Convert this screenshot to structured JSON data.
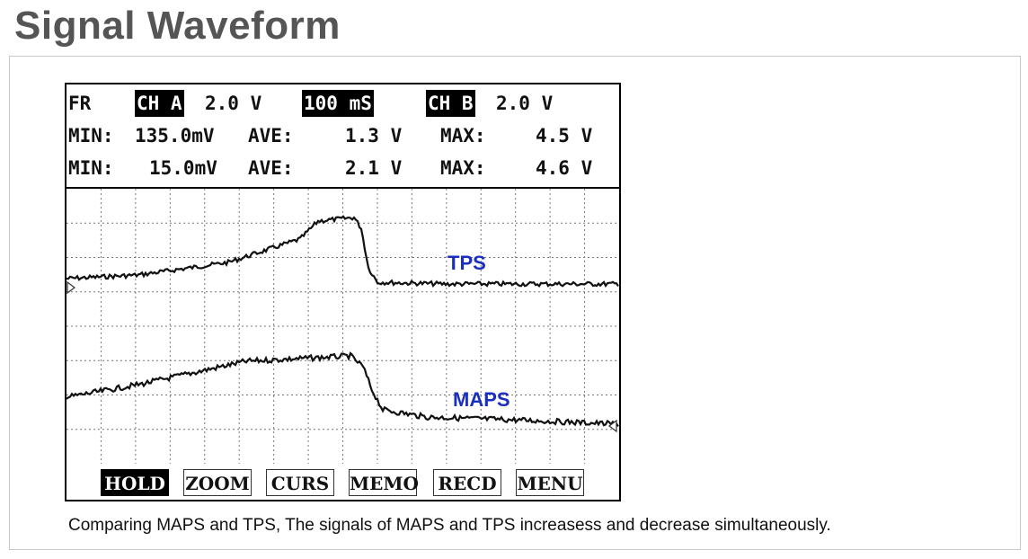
{
  "title": "Signal Waveform",
  "scope": {
    "header": {
      "mode": "FR",
      "ch_a_label": "CH A",
      "ch_a_scale": "2.0 V",
      "timebase": "100 mS",
      "ch_b_label": "CH B",
      "ch_b_scale": "2.0 V",
      "row_a": {
        "min_label": "MIN:",
        "min_value": "135.0mV",
        "ave_label": "AVE:",
        "ave_value": "1.3 V",
        "max_label": "MAX:",
        "max_value": "4.5 V"
      },
      "row_b": {
        "min_label": "MIN:",
        "min_value": "15.0mV",
        "ave_label": "AVE:",
        "ave_value": "2.1 V",
        "max_label": "MAX:",
        "max_value": "4.6 V"
      }
    },
    "traces": {
      "tps_label": "TPS",
      "maps_label": "MAPS"
    },
    "buttons": [
      {
        "label": "HOLD",
        "active": true
      },
      {
        "label": "ZOOM",
        "active": false
      },
      {
        "label": "CURS",
        "active": false
      },
      {
        "label": "MEMO",
        "active": false
      },
      {
        "label": "RECD",
        "active": false
      },
      {
        "label": "MENU",
        "active": false
      }
    ]
  },
  "caption": "Comparing MAPS and TPS, The signals of MAPS and TPS increasess and decrease simultaneously."
}
